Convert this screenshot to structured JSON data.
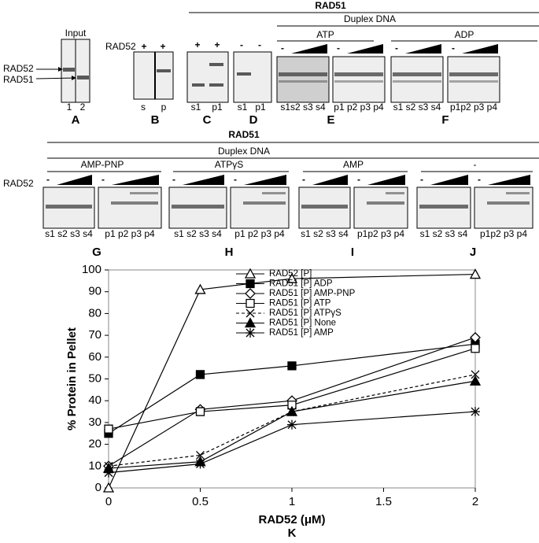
{
  "figure": {
    "top_header": "RAD51",
    "top_duplex": "Duplex DNA",
    "panel_a": {
      "title": "Input",
      "labels": [
        "RAD52",
        "RAD51"
      ],
      "lanes": [
        "1",
        "2"
      ],
      "letter": "A"
    },
    "panel_b": {
      "row_label": "RAD52",
      "signs": [
        "+",
        "+"
      ],
      "lanes": [
        "s",
        "p"
      ],
      "letter": "B"
    },
    "panel_c": {
      "signs": [
        "+",
        "+"
      ],
      "lanes": [
        "s1",
        "p1"
      ],
      "letter": "C"
    },
    "panel_d": {
      "signs": [
        "-",
        "-"
      ],
      "lanes": [
        "s1",
        "p1"
      ],
      "letter": "D"
    },
    "panel_e": {
      "nucleotide": "ATP",
      "signs": [
        "-",
        "-"
      ],
      "lanes": [
        "s1s2 s3 s4",
        "p1 p2 p3 p4"
      ],
      "letter": "E"
    },
    "panel_f": {
      "nucleotide": "ADP",
      "signs": [
        "-",
        "-"
      ],
      "lanes": [
        "s1 s2 s3 s4",
        "p1p2 p3 p4"
      ],
      "letter": "F"
    },
    "bottom_header": "RAD51",
    "bottom_duplex": "Duplex DNA",
    "row_label": "RAD52",
    "panels_bottom": [
      {
        "nucleotide": "AMP-PNP",
        "signs": [
          "-",
          "-"
        ],
        "lanes": [
          "s1 s2 s3 s4",
          "p1 p2 p3 p4"
        ],
        "letter": "G"
      },
      {
        "nucleotide": "ATPγS",
        "signs": [
          "-",
          "-"
        ],
        "lanes": [
          "s1 s2 s3 s4",
          "p1 p2 p3 p4"
        ],
        "letter": "H"
      },
      {
        "nucleotide": "AMP",
        "signs": [
          "-",
          "-"
        ],
        "lanes": [
          "s1 s2 s3 s4",
          "p1p2 p3 p4"
        ],
        "letter": "I"
      },
      {
        "nucleotide": "-",
        "signs": [
          "-",
          "-"
        ],
        "lanes": [
          "s1 s2 s3 s4",
          "p1p2 p3 p4"
        ],
        "letter": "J"
      }
    ]
  },
  "chart_data": {
    "type": "line",
    "panel_letter": "K",
    "x_label": "RAD52 (μM)",
    "y_label": "% Protein in Pellet",
    "x": [
      0,
      0.5,
      1,
      2
    ],
    "xlim": [
      0,
      2
    ],
    "xticks": [
      0,
      0.5,
      1,
      1.5,
      2
    ],
    "ylim": [
      0,
      100
    ],
    "yticks": [
      0,
      10,
      20,
      30,
      40,
      50,
      60,
      70,
      80,
      90,
      100
    ],
    "legend": "upper center",
    "series": [
      {
        "name": "RAD52 [P]",
        "color": "#000000",
        "marker": "triangle-open",
        "dashed": false,
        "values": [
          0,
          91,
          96,
          98
        ]
      },
      {
        "name": "RAD51 [P] ADP",
        "color": "#000000",
        "marker": "square",
        "dashed": false,
        "values": [
          25,
          52,
          56,
          66
        ]
      },
      {
        "name": "RAD51 [P] AMP-PNP",
        "color": "#000000",
        "marker": "diamond-open",
        "dashed": false,
        "values": [
          10,
          36,
          40,
          69
        ]
      },
      {
        "name": "RAD51 [P] ATP",
        "color": "#000000",
        "marker": "square-open",
        "dashed": false,
        "values": [
          27,
          35,
          38,
          64
        ]
      },
      {
        "name": "RAD51 [P] ATPγS",
        "color": "#000000",
        "marker": "x",
        "dashed": true,
        "values": [
          10,
          15,
          35,
          52
        ]
      },
      {
        "name": "RAD51 [P] None",
        "color": "#000000",
        "marker": "triangle",
        "dashed": false,
        "values": [
          9,
          12,
          35,
          49
        ]
      },
      {
        "name": "RAD51 [P] AMP",
        "color": "#000000",
        "marker": "star",
        "dashed": false,
        "values": [
          7,
          11,
          29,
          35
        ]
      }
    ]
  }
}
